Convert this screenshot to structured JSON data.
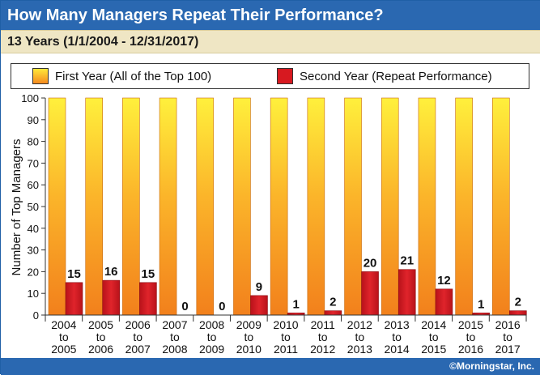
{
  "title": "How Many Managers Repeat Their Performance?",
  "subtitle": "13 Years (1/1/2004 - 12/31/2017)",
  "footer": "©Morningstar, Inc.",
  "colors": {
    "title_bg": "#2a68b1",
    "subtitle_bg": "#efe6c4",
    "first_year_top": "#ffe93a",
    "first_year_bottom": "#f58a1f",
    "second_year": "#d71920",
    "axis": "#333333"
  },
  "chart_data": {
    "type": "bar",
    "title": "How Many Managers Repeat Their Performance?",
    "subtitle": "13 Years (1/1/2004 - 12/31/2017)",
    "xlabel": "",
    "ylabel": "Number of Top Managers",
    "ylim": [
      0,
      100
    ],
    "yticks": [
      0,
      10,
      20,
      30,
      40,
      50,
      60,
      70,
      80,
      90,
      100
    ],
    "categories": [
      [
        "2004",
        "to",
        "2005"
      ],
      [
        "2005",
        "to",
        "2006"
      ],
      [
        "2006",
        "to",
        "2007"
      ],
      [
        "2007",
        "to",
        "2008"
      ],
      [
        "2008",
        "to",
        "2009"
      ],
      [
        "2009",
        "to",
        "2010"
      ],
      [
        "2010",
        "to",
        "2011"
      ],
      [
        "2011",
        "to",
        "2012"
      ],
      [
        "2012",
        "to",
        "2013"
      ],
      [
        "2013",
        "to",
        "2014"
      ],
      [
        "2014",
        "to",
        "2015"
      ],
      [
        "2015",
        "to",
        "2016"
      ],
      [
        "2016",
        "to",
        "2017"
      ]
    ],
    "series": [
      {
        "name": "First Year (All of the Top 100)",
        "values": [
          100,
          100,
          100,
          100,
          100,
          100,
          100,
          100,
          100,
          100,
          100,
          100,
          100
        ]
      },
      {
        "name": "Second Year (Repeat Performance)",
        "values": [
          15,
          16,
          15,
          0,
          0,
          9,
          1,
          2,
          20,
          21,
          12,
          1,
          2
        ]
      }
    ],
    "legend_position": "top",
    "grid": false
  }
}
